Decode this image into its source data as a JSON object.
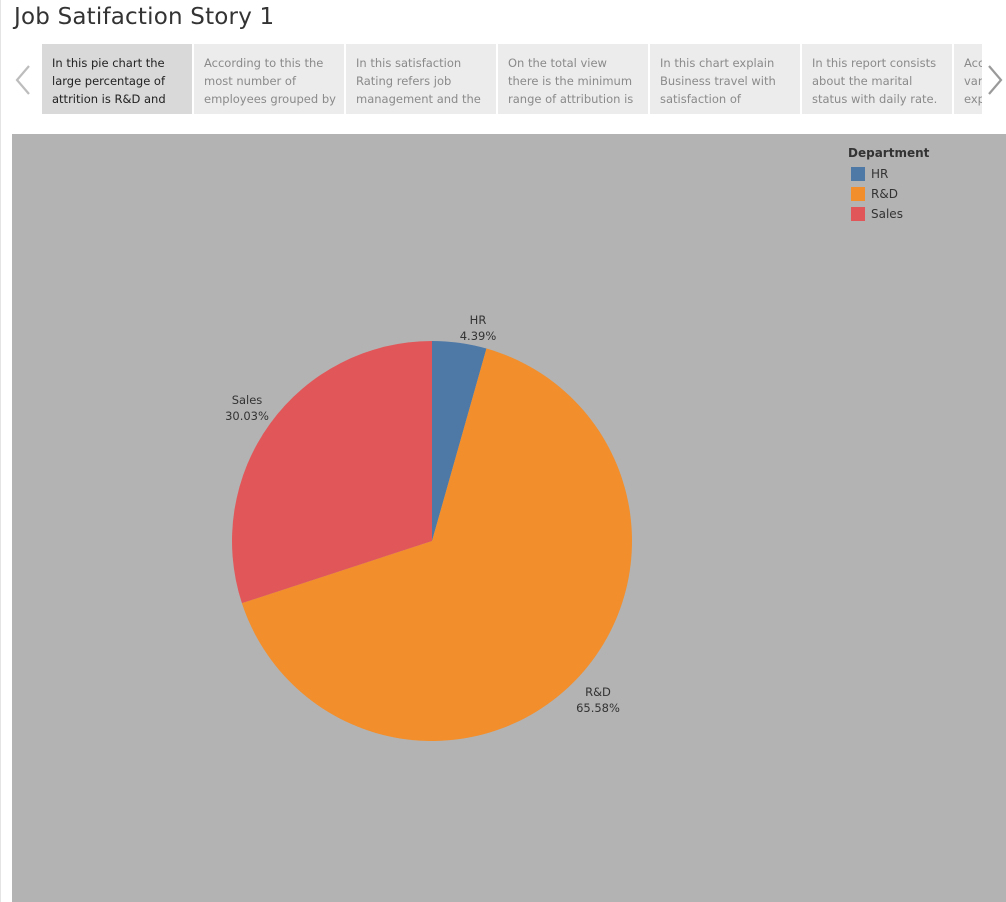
{
  "page": {
    "title": "Job Satifaction Story 1"
  },
  "icons": {
    "prev": "chevron-left-icon",
    "next": "chevron-right-icon"
  },
  "story_points": [
    {
      "text": "In this pie chart the\nlarge percentage of\nattrition is R&D and",
      "active": true
    },
    {
      "text": "According to this  the\nmost number of\nemployees grouped by",
      "active": false
    },
    {
      "text": "In this satisfaction\nRating refers job\nmanagement and the",
      "active": false
    },
    {
      "text": "On the total view\nthere is the minimum\nrange of attribution is",
      "active": false
    },
    {
      "text": "In this chart explain\nBusiness travel with\nsatisfaction of",
      "active": false
    },
    {
      "text": "In this report consists\nabout the marital\nstatus with daily rate.",
      "active": false
    },
    {
      "text": "Acc\nvar\nexp",
      "active": false
    }
  ],
  "legend": {
    "title": "Department",
    "items": [
      {
        "label": "HR",
        "color": "#4e79a7"
      },
      {
        "label": "R&D",
        "color": "#f28e2b"
      },
      {
        "label": "Sales",
        "color": "#e15759"
      }
    ]
  },
  "chart_data": {
    "type": "pie",
    "categories": [
      "HR",
      "R&D",
      "Sales"
    ],
    "values": [
      4.39,
      65.58,
      30.03
    ],
    "value_labels": [
      "4.39%",
      "65.58%",
      "30.03%"
    ],
    "colors": [
      "#4e79a7",
      "#f28e2b",
      "#e15759"
    ],
    "start": "12 o'clock",
    "direction": "clockwise",
    "background": "#b3b3b3",
    "legend_position": "top-right"
  }
}
